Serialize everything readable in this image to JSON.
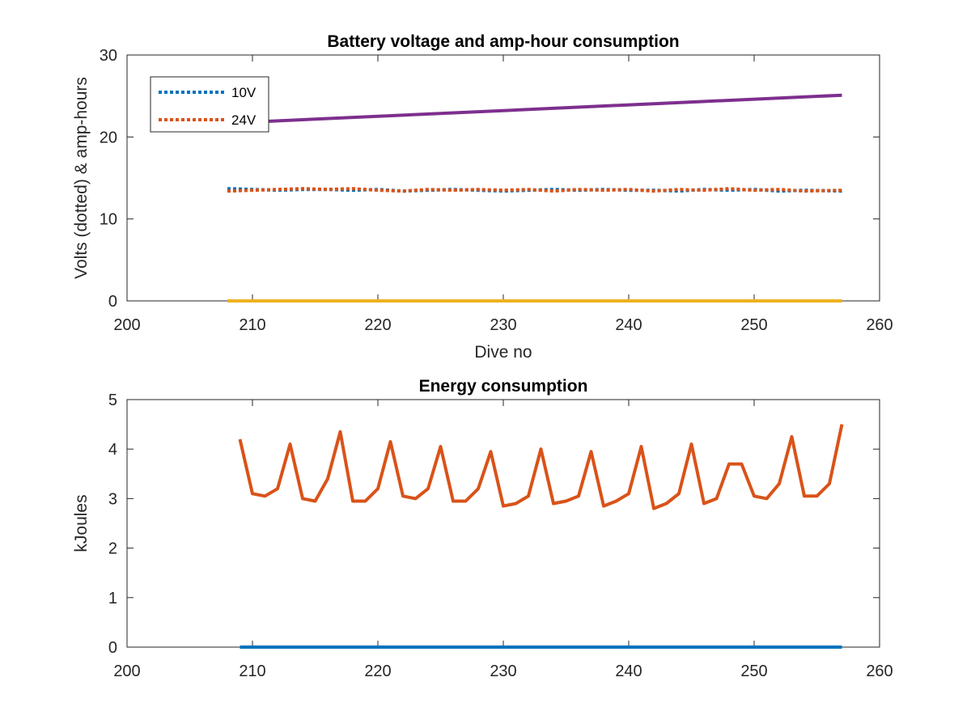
{
  "chart_data": [
    {
      "type": "line",
      "title": "Battery voltage and amp-hour consumption",
      "xlabel": "Dive no",
      "ylabel": "Volts (dotted) & amp-hours",
      "xlim": [
        200,
        260
      ],
      "ylim": [
        0,
        30
      ],
      "xticks": [
        200,
        210,
        220,
        230,
        240,
        250,
        260
      ],
      "yticks": [
        0,
        10,
        20,
        30
      ],
      "grid": false,
      "legend": {
        "placement": "top-left",
        "entries": [
          "10V",
          "24V"
        ]
      },
      "series": [
        {
          "name": "10V",
          "style": "dotted",
          "color": "#0072BD",
          "x": [
            208,
            210,
            212,
            214,
            216,
            218,
            220,
            222,
            224,
            226,
            228,
            230,
            232,
            234,
            236,
            238,
            240,
            242,
            244,
            246,
            248,
            250,
            252,
            254,
            257
          ],
          "y": [
            13.7,
            13.6,
            13.5,
            13.6,
            13.6,
            13.5,
            13.6,
            13.4,
            13.5,
            13.6,
            13.5,
            13.4,
            13.5,
            13.6,
            13.5,
            13.6,
            13.5,
            13.5,
            13.4,
            13.6,
            13.5,
            13.6,
            13.4,
            13.5,
            13.4
          ]
        },
        {
          "name": "24V",
          "style": "dotted",
          "color": "#D95319",
          "x": [
            208,
            210,
            212,
            214,
            216,
            218,
            220,
            222,
            224,
            226,
            228,
            230,
            232,
            234,
            236,
            238,
            240,
            242,
            244,
            246,
            248,
            250,
            252,
            254,
            257
          ],
          "y": [
            13.4,
            13.5,
            13.6,
            13.7,
            13.6,
            13.7,
            13.5,
            13.4,
            13.6,
            13.5,
            13.6,
            13.5,
            13.6,
            13.4,
            13.6,
            13.5,
            13.6,
            13.4,
            13.6,
            13.5,
            13.7,
            13.5,
            13.6,
            13.4,
            13.5
          ]
        },
        {
          "style": "solid",
          "color": "#7E2F8E",
          "x": [
            211,
            257
          ],
          "y": [
            21.9,
            25.1
          ]
        },
        {
          "style": "solid",
          "color": "#EDB120",
          "x": [
            208,
            257
          ],
          "y": [
            0,
            0
          ]
        }
      ]
    },
    {
      "type": "line",
      "title": "Energy consumption",
      "xlabel": "",
      "ylabel": "kJoules",
      "xlim": [
        200,
        260
      ],
      "ylim": [
        0,
        5
      ],
      "xticks": [
        200,
        210,
        220,
        230,
        240,
        250,
        260
      ],
      "yticks": [
        0,
        1,
        2,
        3,
        4,
        5
      ],
      "grid": false,
      "series": [
        {
          "style": "solid",
          "color": "#D95319",
          "x": [
            209,
            210,
            211,
            212,
            213,
            214,
            215,
            216,
            217,
            218,
            219,
            220,
            221,
            222,
            223,
            224,
            225,
            226,
            227,
            228,
            229,
            230,
            231,
            232,
            233,
            234,
            235,
            236,
            237,
            238,
            239,
            240,
            241,
            242,
            243,
            244,
            245,
            246,
            247,
            248,
            249,
            250,
            251,
            252,
            253,
            254,
            255,
            256,
            257
          ],
          "y": [
            4.2,
            3.1,
            3.05,
            3.2,
            4.1,
            3.0,
            2.95,
            3.4,
            4.35,
            2.95,
            2.95,
            3.2,
            4.15,
            3.05,
            3.0,
            3.2,
            4.05,
            2.95,
            2.95,
            3.2,
            3.95,
            2.85,
            2.9,
            3.05,
            4.0,
            2.9,
            2.95,
            3.05,
            3.95,
            2.85,
            2.95,
            3.1,
            4.05,
            2.8,
            2.9,
            3.1,
            4.1,
            2.9,
            3.0,
            3.7,
            3.7,
            3.05,
            3.0,
            3.3,
            4.25,
            3.05,
            3.05,
            3.3,
            4.5
          ]
        },
        {
          "style": "solid",
          "color": "#0072BD",
          "x": [
            209,
            257
          ],
          "y": [
            0,
            0
          ]
        }
      ]
    }
  ]
}
